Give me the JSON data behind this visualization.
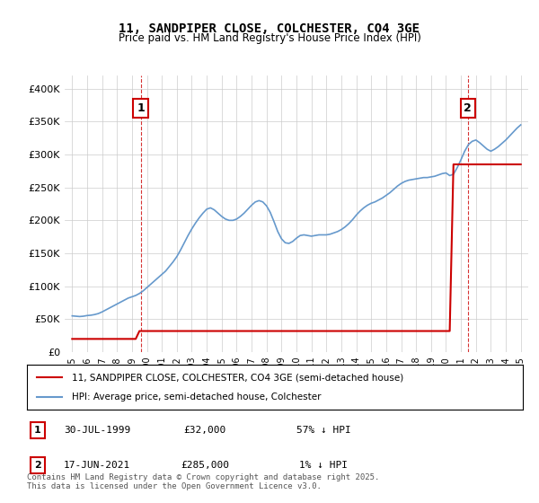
{
  "title": "11, SANDPIPER CLOSE, COLCHESTER, CO4 3GE",
  "subtitle": "Price paid vs. HM Land Registry's House Price Index (HPI)",
  "background_color": "#ffffff",
  "grid_color": "#cccccc",
  "hpi_color": "#6699cc",
  "price_color": "#cc0000",
  "dashed_color": "#cc0000",
  "ylim": [
    0,
    420000
  ],
  "yticks": [
    0,
    50000,
    100000,
    150000,
    200000,
    250000,
    300000,
    350000,
    400000
  ],
  "ytick_labels": [
    "£0",
    "£50K",
    "£100K",
    "£150K",
    "£200K",
    "£250K",
    "£300K",
    "£350K",
    "£400K"
  ],
  "xlim_start": 1995,
  "xlim_end": 2025.5,
  "xticks": [
    1995,
    1996,
    1997,
    1998,
    1999,
    2000,
    2001,
    2002,
    2003,
    2004,
    2005,
    2006,
    2007,
    2008,
    2009,
    2010,
    2011,
    2012,
    2013,
    2014,
    2015,
    2016,
    2017,
    2018,
    2019,
    2020,
    2021,
    2022,
    2023,
    2024,
    2025
  ],
  "sale1_x": 1999.58,
  "sale1_y": 32000,
  "sale1_label": "1",
  "sale2_x": 2021.46,
  "sale2_y": 285000,
  "sale2_label": "2",
  "legend_line1": "11, SANDPIPER CLOSE, COLCHESTER, CO4 3GE (semi-detached house)",
  "legend_line2": "HPI: Average price, semi-detached house, Colchester",
  "annotation1_date": "30-JUL-1999",
  "annotation1_price": "£32,000",
  "annotation1_hpi": "57% ↓ HPI",
  "annotation2_date": "17-JUN-2021",
  "annotation2_price": "£285,000",
  "annotation2_hpi": "1% ↓ HPI",
  "footer": "Contains HM Land Registry data © Crown copyright and database right 2025.\nThis data is licensed under the Open Government Licence v3.0.",
  "hpi_data_x": [
    1995.0,
    1995.25,
    1995.5,
    1995.75,
    1996.0,
    1996.25,
    1996.5,
    1996.75,
    1997.0,
    1997.25,
    1997.5,
    1997.75,
    1998.0,
    1998.25,
    1998.5,
    1998.75,
    1999.0,
    1999.25,
    1999.5,
    1999.75,
    2000.0,
    2000.25,
    2000.5,
    2000.75,
    2001.0,
    2001.25,
    2001.5,
    2001.75,
    2002.0,
    2002.25,
    2002.5,
    2002.75,
    2003.0,
    2003.25,
    2003.5,
    2003.75,
    2004.0,
    2004.25,
    2004.5,
    2004.75,
    2005.0,
    2005.25,
    2005.5,
    2005.75,
    2006.0,
    2006.25,
    2006.5,
    2006.75,
    2007.0,
    2007.25,
    2007.5,
    2007.75,
    2008.0,
    2008.25,
    2008.5,
    2008.75,
    2009.0,
    2009.25,
    2009.5,
    2009.75,
    2010.0,
    2010.25,
    2010.5,
    2010.75,
    2011.0,
    2011.25,
    2011.5,
    2011.75,
    2012.0,
    2012.25,
    2012.5,
    2012.75,
    2013.0,
    2013.25,
    2013.5,
    2013.75,
    2014.0,
    2014.25,
    2014.5,
    2014.75,
    2015.0,
    2015.25,
    2015.5,
    2015.75,
    2016.0,
    2016.25,
    2016.5,
    2016.75,
    2017.0,
    2017.25,
    2017.5,
    2017.75,
    2018.0,
    2018.25,
    2018.5,
    2018.75,
    2019.0,
    2019.25,
    2019.5,
    2019.75,
    2020.0,
    2020.25,
    2020.5,
    2020.75,
    2021.0,
    2021.25,
    2021.5,
    2021.75,
    2022.0,
    2022.25,
    2022.5,
    2022.75,
    2023.0,
    2023.25,
    2023.5,
    2023.75,
    2024.0,
    2024.25,
    2024.5,
    2024.75,
    2025.0
  ],
  "hpi_data_y": [
    55000,
    54500,
    54000,
    54500,
    55500,
    56000,
    57000,
    58500,
    61000,
    64000,
    67000,
    70000,
    73000,
    76000,
    79000,
    82000,
    84000,
    86000,
    89000,
    93000,
    98000,
    103000,
    108000,
    113000,
    118000,
    123000,
    130000,
    137000,
    145000,
    155000,
    166000,
    177000,
    187000,
    196000,
    204000,
    211000,
    217000,
    219000,
    216000,
    211000,
    206000,
    202000,
    200000,
    200000,
    202000,
    206000,
    211000,
    217000,
    223000,
    228000,
    230000,
    228000,
    222000,
    212000,
    198000,
    183000,
    172000,
    166000,
    165000,
    168000,
    173000,
    177000,
    178000,
    177000,
    176000,
    177000,
    178000,
    178000,
    178000,
    179000,
    181000,
    183000,
    186000,
    190000,
    195000,
    201000,
    208000,
    214000,
    219000,
    223000,
    226000,
    228000,
    231000,
    234000,
    238000,
    242000,
    247000,
    252000,
    256000,
    259000,
    261000,
    262000,
    263000,
    264000,
    265000,
    265000,
    266000,
    267000,
    269000,
    271000,
    272000,
    268000,
    270000,
    280000,
    292000,
    305000,
    315000,
    320000,
    322000,
    318000,
    313000,
    308000,
    305000,
    308000,
    312000,
    317000,
    322000,
    328000,
    334000,
    340000,
    345000
  ],
  "price_data_x": [
    1995.0,
    1995.25,
    1995.5,
    1995.75,
    1996.0,
    1996.25,
    1996.5,
    1996.75,
    1997.0,
    1997.25,
    1997.5,
    1997.75,
    1998.0,
    1998.25,
    1998.5,
    1998.75,
    1999.0,
    1999.25,
    1999.5,
    1999.75,
    2000.0,
    2000.25,
    2000.5,
    2000.75,
    2001.0,
    2001.25,
    2001.5,
    2001.75,
    2002.0,
    2002.25,
    2002.5,
    2002.75,
    2003.0,
    2003.25,
    2003.5,
    2003.75,
    2004.0,
    2004.25,
    2004.5,
    2004.75,
    2005.0,
    2005.25,
    2005.5,
    2005.75,
    2006.0,
    2006.25,
    2006.5,
    2006.75,
    2007.0,
    2007.25,
    2007.5,
    2007.75,
    2008.0,
    2008.25,
    2008.5,
    2008.75,
    2009.0,
    2009.25,
    2009.5,
    2009.75,
    2010.0,
    2010.25,
    2010.5,
    2010.75,
    2011.0,
    2011.25,
    2011.5,
    2011.75,
    2012.0,
    2012.25,
    2012.5,
    2012.75,
    2013.0,
    2013.25,
    2013.5,
    2013.75,
    2014.0,
    2014.25,
    2014.5,
    2014.75,
    2015.0,
    2015.25,
    2015.5,
    2015.75,
    2016.0,
    2016.25,
    2016.5,
    2016.75,
    2017.0,
    2017.25,
    2017.5,
    2017.75,
    2018.0,
    2018.25,
    2018.5,
    2018.75,
    2019.0,
    2019.25,
    2019.5,
    2019.75,
    2020.0,
    2020.25,
    2020.5,
    2020.75,
    2021.0,
    2021.25,
    2021.5,
    2021.75,
    2022.0,
    2022.25,
    2022.5,
    2022.75,
    2023.0,
    2023.25,
    2023.5,
    2023.75,
    2024.0,
    2024.25,
    2024.5,
    2024.75,
    2025.0
  ],
  "price_data_y": [
    20000,
    20000,
    20000,
    20000,
    20000,
    20000,
    20000,
    20000,
    20000,
    20000,
    20000,
    20000,
    20000,
    20000,
    20000,
    20000,
    20000,
    20000,
    32000,
    32000,
    32000,
    32000,
    32000,
    32000,
    32000,
    32000,
    32000,
    32000,
    32000,
    32000,
    32000,
    32000,
    32000,
    32000,
    32000,
    32000,
    32000,
    32000,
    32000,
    32000,
    32000,
    32000,
    32000,
    32000,
    32000,
    32000,
    32000,
    32000,
    32000,
    32000,
    32000,
    32000,
    32000,
    32000,
    32000,
    32000,
    32000,
    32000,
    32000,
    32000,
    32000,
    32000,
    32000,
    32000,
    32000,
    32000,
    32000,
    32000,
    32000,
    32000,
    32000,
    32000,
    32000,
    32000,
    32000,
    32000,
    32000,
    32000,
    32000,
    32000,
    32000,
    32000,
    32000,
    32000,
    32000,
    32000,
    32000,
    32000,
    32000,
    32000,
    32000,
    32000,
    32000,
    32000,
    32000,
    32000,
    32000,
    32000,
    32000,
    32000,
    32000,
    32000,
    285000,
    285000,
    285000,
    285000,
    285000,
    285000,
    285000,
    285000,
    285000,
    285000,
    285000,
    285000,
    285000,
    285000,
    285000,
    285000,
    285000,
    285000,
    285000
  ]
}
